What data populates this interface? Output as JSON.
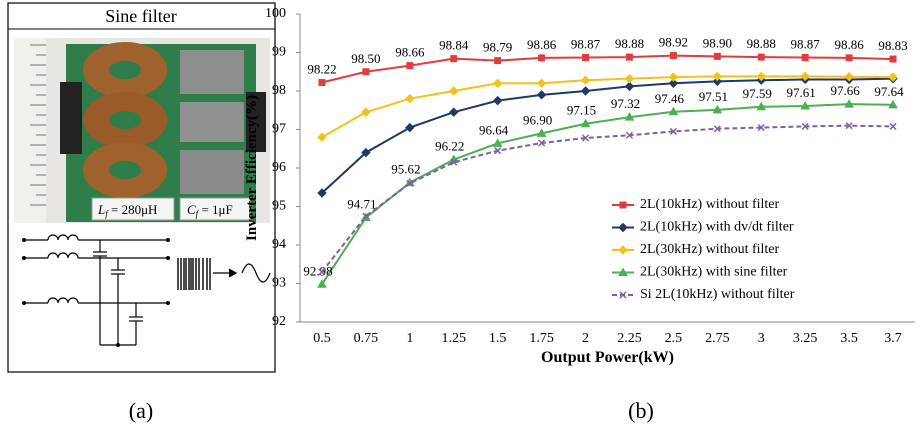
{
  "panel_a": {
    "title": "Sine filter",
    "inductor": {
      "symbol": "L",
      "subscript": "f",
      "value": " = 280μH"
    },
    "capacitor": {
      "symbol": "C",
      "subscript": "f",
      "value": " = 1μF"
    }
  },
  "captions": [
    "(a)",
    "(b)"
  ],
  "chart_data": {
    "type": "line",
    "x_label": "Output Power(kW)",
    "y_label": "Inverter Efficiency(%)",
    "categories": [
      "0.5",
      "0.75",
      "1",
      "1.25",
      "1.5",
      "1.75",
      "2",
      "2.25",
      "2.5",
      "2.75",
      "3",
      "3.25",
      "3.5",
      "3.7"
    ],
    "ylim": [
      92,
      100
    ],
    "yticks": [
      92,
      93,
      94,
      95,
      96,
      97,
      98,
      99,
      100
    ],
    "grid": false,
    "legend": "right",
    "series": [
      {
        "name": "2L(10kHz) without filter",
        "color": "#e03c3c",
        "marker": "square",
        "values": [
          98.22,
          98.5,
          98.66,
          98.84,
          98.79,
          98.86,
          98.87,
          98.88,
          98.92,
          98.9,
          98.88,
          98.87,
          98.86,
          98.83
        ],
        "value_labels": [
          "98.22",
          "98.50",
          "98.66",
          "98.84",
          "98.79",
          "98.86",
          "98.87",
          "98.88",
          "98.92",
          "98.90",
          "98.88",
          "98.87",
          "98.86",
          "98.83"
        ]
      },
      {
        "name": "2L(10kHz) with dv/dt filter",
        "color": "#1f3864",
        "marker": "diamond",
        "values": [
          95.35,
          96.4,
          97.05,
          97.45,
          97.75,
          97.9,
          98.0,
          98.12,
          98.2,
          98.25,
          98.28,
          98.3,
          98.3,
          98.32
        ]
      },
      {
        "name": "2L(30kHz) without filter",
        "color": "#f2c21b",
        "marker": "diamond",
        "values": [
          96.8,
          97.45,
          97.8,
          98.0,
          98.2,
          98.2,
          98.28,
          98.32,
          98.36,
          98.38,
          98.38,
          98.38,
          98.37,
          98.36
        ]
      },
      {
        "name": "2L(30kHz) with sine filter",
        "color": "#4caf50",
        "marker": "triangle",
        "values": [
          92.98,
          94.71,
          95.62,
          96.22,
          96.64,
          96.9,
          97.15,
          97.32,
          97.46,
          97.51,
          97.59,
          97.61,
          97.66,
          97.64
        ],
        "value_labels": [
          "92.98",
          "94.71",
          "95.62",
          "96.22",
          "96.64",
          "96.90",
          "97.15",
          "97.32",
          "97.46",
          "97.51",
          "97.59",
          "97.61",
          "97.66",
          "97.64"
        ]
      },
      {
        "name": "Si 2L(10kHz) without filter",
        "color": "#7b5fa8",
        "marker": "cross",
        "dashed": true,
        "values": [
          93.3,
          94.75,
          95.6,
          96.15,
          96.45,
          96.65,
          96.78,
          96.85,
          96.95,
          97.02,
          97.05,
          97.08,
          97.1,
          97.08
        ]
      }
    ]
  }
}
